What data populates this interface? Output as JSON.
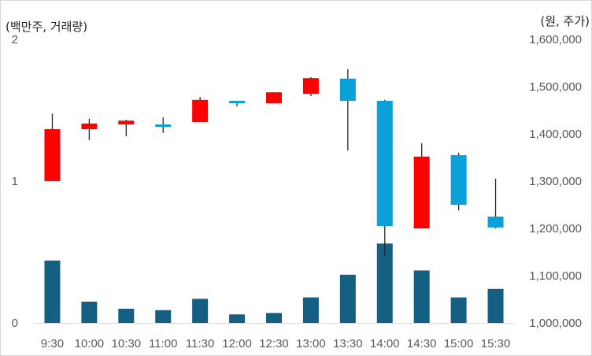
{
  "chart_data": {
    "type": "candlestick+bar",
    "categories": [
      "9:30",
      "10:00",
      "10:30",
      "11:00",
      "11:30",
      "12:00",
      "12:30",
      "13:00",
      "13:30",
      "14:00",
      "14:30",
      "15:00",
      "15:30"
    ],
    "left_axis": {
      "unit_label": "(백만주, 거래량)",
      "ylim": [
        0,
        2
      ],
      "ticks": [
        0,
        1,
        2
      ],
      "tick_labels": [
        "0",
        "1",
        "2"
      ]
    },
    "right_axis": {
      "unit_label": "(원, 주가)",
      "ylim": [
        1000000,
        1600000
      ],
      "ticks": [
        1000000,
        1100000,
        1200000,
        1300000,
        1400000,
        1500000,
        1600000
      ],
      "tick_labels": [
        "1,000,000",
        "1,100,000",
        "1,200,000",
        "1,300,000",
        "1,400,000",
        "1,500,000",
        "1,600,000"
      ]
    },
    "volume": {
      "axis": "left",
      "color": "#156082",
      "values": [
        0.44,
        0.15,
        0.1,
        0.09,
        0.17,
        0.06,
        0.07,
        0.18,
        0.34,
        0.56,
        0.37,
        0.18,
        0.24
      ]
    },
    "candles": {
      "axis": "right",
      "up_color": "#ff0000",
      "down_color": "#0aa0d8",
      "wick_color": "#262626",
      "open": [
        1300000,
        1410000,
        1420000,
        1420000,
        1425000,
        1470000,
        1465000,
        1485000,
        1517000,
        1470000,
        1200000,
        1355000,
        1225000
      ],
      "close": [
        1410000,
        1422000,
        1428000,
        1415000,
        1472000,
        1465000,
        1488000,
        1518000,
        1470000,
        1205000,
        1352000,
        1250000,
        1202000
      ],
      "high": [
        1443000,
        1432000,
        1430000,
        1435000,
        1478000,
        1470000,
        1488000,
        1520000,
        1537000,
        1472000,
        1380000,
        1360000,
        1305000
      ],
      "low": [
        1300000,
        1387000,
        1395000,
        1402000,
        1425000,
        1458000,
        1465000,
        1480000,
        1365000,
        1140000,
        1202000,
        1238000,
        1200000
      ]
    }
  }
}
